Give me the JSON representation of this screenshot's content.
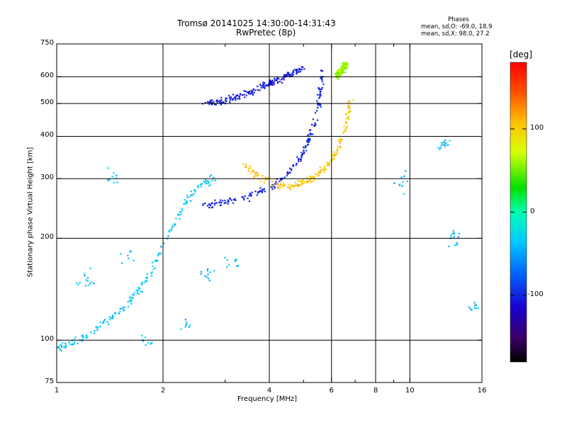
{
  "header": {
    "title_line1": "Tromsø 20141025 14:30:00-14:31:43",
    "title_line2": "RwPretec (8p)"
  },
  "phases_box": {
    "heading": "Phases",
    "line_o": "mean, sd,O: -69.0, 18.9",
    "line_x": "mean, sd,X:  98.0, 27.2"
  },
  "chart_data": {
    "type": "scatter",
    "title": "Tromsø 20141025 14:30:00-14:31:43",
    "subtitle": "RwPretec (8p)",
    "xlabel": "Frequency [MHz]",
    "ylabel": "Stationary phase Virtual Height [km]",
    "x_scale": "log",
    "y_scale": "log",
    "xlim": [
      1,
      16
    ],
    "ylim": [
      75,
      750
    ],
    "x_ticks": [
      1,
      2,
      4,
      6,
      8,
      10,
      16
    ],
    "x_tick_labels": [
      "1",
      "2",
      "4",
      "6",
      "8",
      "10",
      "16"
    ],
    "x_minor_ticks": [
      3,
      5,
      7,
      9
    ],
    "y_ticks": [
      75,
      100,
      200,
      300,
      400,
      500,
      600,
      750
    ],
    "y_tick_labels": [
      "75",
      "100",
      "200",
      "300",
      "400",
      "500",
      "600",
      "750"
    ],
    "y_minor_ticks": [],
    "grid": true,
    "color_attribute": "phase [deg]",
    "colorbar": {
      "label": "[deg]",
      "range": [
        -180,
        180
      ],
      "ticks": [
        100,
        0,
        -100
      ],
      "tick_labels": [
        "100",
        "0",
        "-100"
      ],
      "placement": "right"
    },
    "traces": [
      {
        "description": "O-mode F-layer trace",
        "phase": -100,
        "points": [
          [
            2.6,
            250
          ],
          [
            2.8,
            252
          ],
          [
            3.0,
            256
          ],
          [
            3.3,
            262
          ],
          [
            3.6,
            270
          ],
          [
            4.0,
            282
          ],
          [
            4.3,
            296
          ],
          [
            4.6,
            316
          ],
          [
            4.9,
            345
          ],
          [
            5.1,
            380
          ],
          [
            5.3,
            420
          ],
          [
            5.45,
            470
          ],
          [
            5.55,
            520
          ],
          [
            5.6,
            570
          ],
          [
            5.62,
            620
          ]
        ]
      },
      {
        "description": "O-mode upper trace",
        "phase": -105,
        "points": [
          [
            2.6,
            500
          ],
          [
            2.9,
            505
          ],
          [
            3.2,
            520
          ],
          [
            3.5,
            540
          ],
          [
            3.8,
            560
          ],
          [
            4.1,
            580
          ],
          [
            4.4,
            600
          ],
          [
            4.7,
            620
          ],
          [
            5.0,
            635
          ]
        ]
      },
      {
        "description": "X-mode F-layer trace",
        "phase": 105,
        "points": [
          [
            3.4,
            330
          ],
          [
            3.8,
            300
          ],
          [
            4.2,
            288
          ],
          [
            4.6,
            285
          ],
          [
            5.0,
            292
          ],
          [
            5.4,
            305
          ],
          [
            5.8,
            325
          ],
          [
            6.2,
            360
          ],
          [
            6.5,
            410
          ],
          [
            6.7,
            470
          ],
          [
            6.8,
            520
          ]
        ]
      },
      {
        "description": "X-mode upper trace",
        "phase": 60,
        "points": [
          [
            6.2,
            600
          ],
          [
            6.35,
            620
          ],
          [
            6.5,
            640
          ],
          [
            6.6,
            650
          ]
        ]
      },
      {
        "description": "E/Es region echoes",
        "phase": -35,
        "points": [
          [
            1.0,
            95
          ],
          [
            1.1,
            98
          ],
          [
            1.25,
            105
          ],
          [
            1.4,
            115
          ],
          [
            1.55,
            125
          ],
          [
            1.7,
            140
          ],
          [
            1.85,
            160
          ],
          [
            2.0,
            190
          ],
          [
            2.2,
            230
          ],
          [
            2.4,
            270
          ],
          [
            2.6,
            290
          ],
          [
            2.8,
            300
          ]
        ]
      },
      {
        "description": "scattered echoes",
        "phase": -40,
        "points": [
          [
            1.2,
            150
          ],
          [
            1.45,
            300
          ],
          [
            1.6,
            180
          ],
          [
            1.8,
            100
          ],
          [
            2.3,
            110
          ],
          [
            2.7,
            160
          ],
          [
            3.1,
            170
          ],
          [
            9.5,
            290
          ],
          [
            12.5,
            380
          ],
          [
            13.5,
            200
          ],
          [
            15.2,
            125
          ]
        ]
      }
    ]
  }
}
